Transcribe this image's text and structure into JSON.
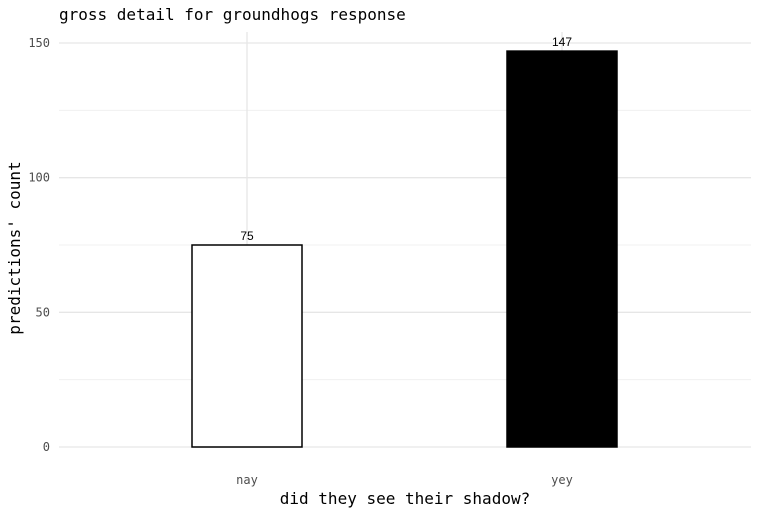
{
  "chart_data": {
    "type": "bar",
    "title": "gross detail for groundhogs response",
    "xlabel": "did they see their shadow?",
    "ylabel": "predictions' count",
    "categories": [
      "nay",
      "yey"
    ],
    "values": [
      75,
      147
    ],
    "data_labels": [
      "75",
      "147"
    ],
    "bar_colors": [
      "#ffffff",
      "#000000"
    ],
    "bar_outline": "#000000",
    "ylim": [
      0,
      154
    ],
    "yticks": [
      0,
      50,
      100,
      150
    ],
    "grid": true,
    "legend": "none"
  }
}
